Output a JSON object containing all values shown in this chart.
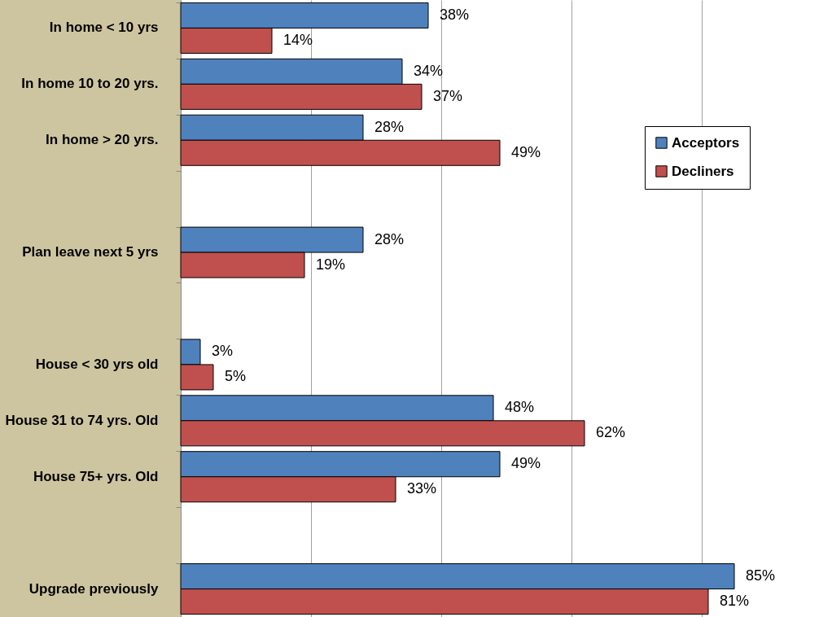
{
  "chart_data": {
    "type": "bar",
    "orientation": "horizontal",
    "categories": [
      "In home < 10 yrs",
      "In home 10 to 20 yrs.",
      "In home > 20 yrs.",
      null,
      "Plan leave next 5 yrs",
      null,
      "House < 30 yrs old",
      "House 31 to 74 yrs. Old",
      "House 75+ yrs. Old",
      null,
      "Upgrade previously"
    ],
    "series": [
      {
        "name": "Acceptors",
        "color": "#4f81bd",
        "values": [
          38,
          34,
          28,
          null,
          28,
          null,
          3,
          48,
          49,
          null,
          85
        ],
        "value_labels": [
          "38%",
          "34%",
          "28%",
          null,
          "28%",
          null,
          "3%",
          "48%",
          "49%",
          null,
          "85%"
        ]
      },
      {
        "name": "Decliners",
        "color": "#c0504d",
        "values": [
          14,
          37,
          49,
          null,
          19,
          null,
          5,
          62,
          33,
          null,
          81
        ],
        "value_labels": [
          "14%",
          "37%",
          "49%",
          null,
          "19%",
          null,
          "5%",
          "62%",
          "33%",
          null,
          "81%"
        ]
      }
    ],
    "xlim": [
      0,
      100
    ],
    "xticks": [
      {
        "value": 0,
        "label": null
      },
      {
        "value": 20,
        "label": null
      },
      {
        "value": 40,
        "label": null
      },
      {
        "value": 60,
        "label": null
      },
      {
        "value": 80,
        "label": null
      },
      {
        "value": 100,
        "label": null
      }
    ],
    "tick_labels": "y",
    "grid": "x",
    "legend": "top right"
  }
}
